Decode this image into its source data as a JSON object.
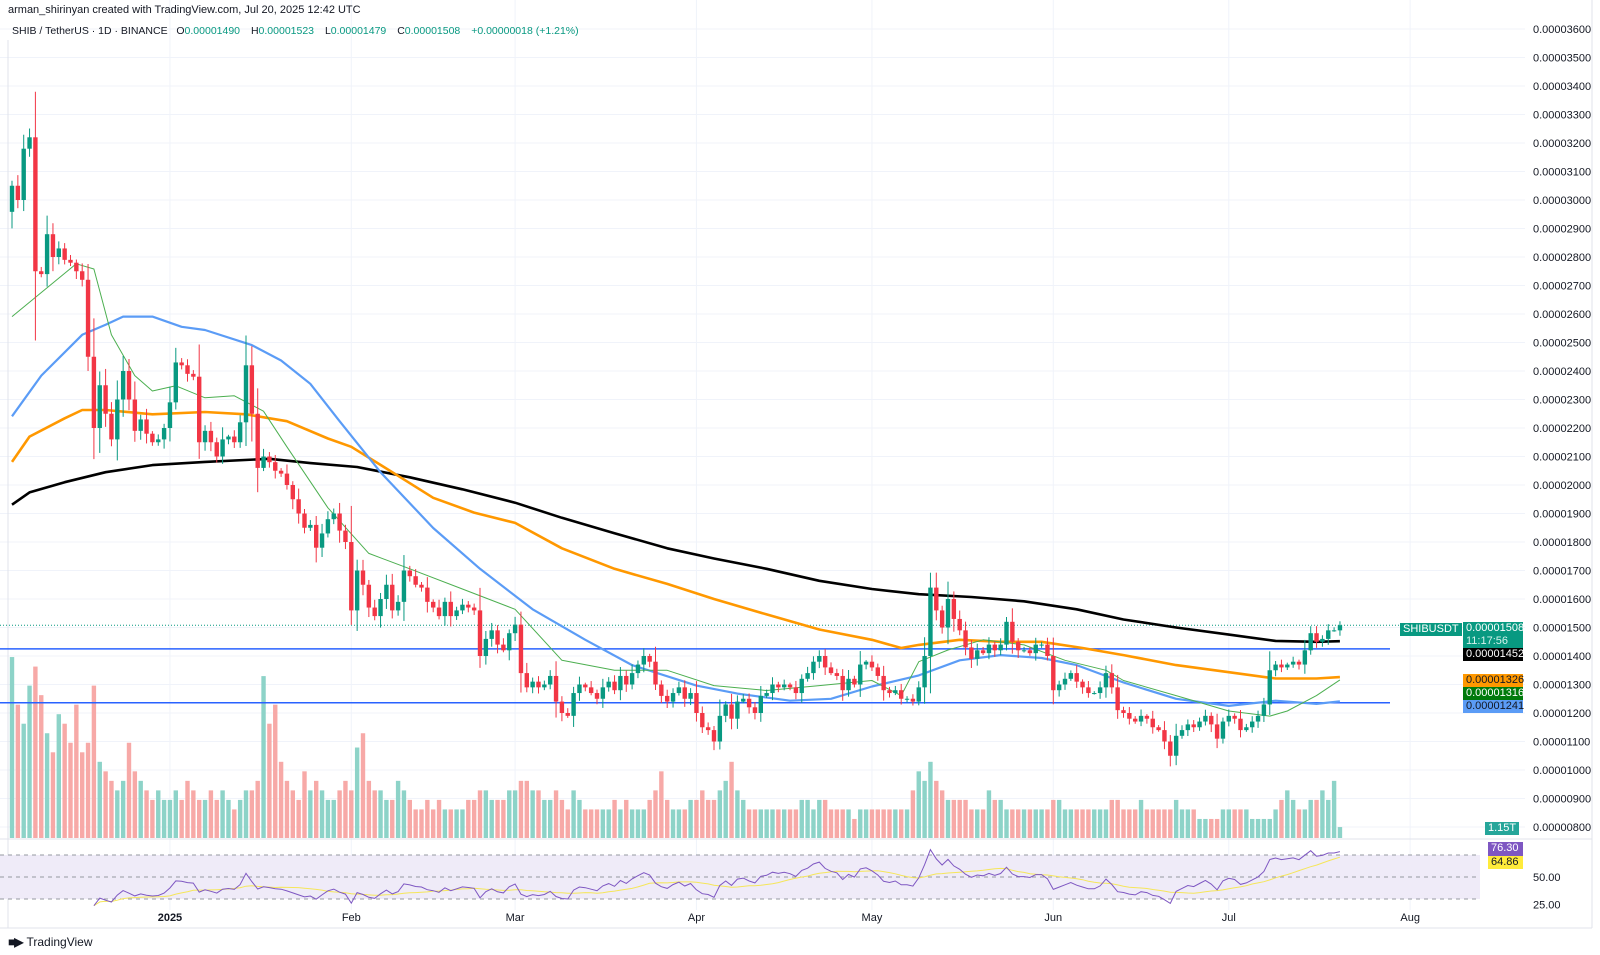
{
  "header": {
    "credit": "arman_shirinyan created with TradingView.com, Jul 20, 2025 12:42 UTC",
    "symbol": "SHIB / TetherUS · 1D · BINANCE",
    "open_label": "O",
    "open": "0.00001490",
    "high_label": "H",
    "high": "0.00001523",
    "low_label": "L",
    "low": "0.00001479",
    "close_label": "C",
    "close": "0.00001508",
    "change": "+0.00000018 (+1.21%)"
  },
  "price_scale": {
    "last_price_tag": "SHIBUSDT",
    "last_price": "0.00001508",
    "countdown": "11:17:56",
    "ma_labels": [
      {
        "value": "0.00001452",
        "color": "#000000"
      },
      {
        "value": "0.00001326",
        "color": "#FF9800"
      },
      {
        "value": "0.00001316",
        "color": "#007A0B"
      },
      {
        "value": "0.00001241",
        "color": "#5B9CF6"
      }
    ],
    "volume_label": "1.15T",
    "rsi_value": "76.30",
    "rsi_ma_value": "64.86"
  },
  "footer": {
    "logo_text": "TradingView"
  },
  "chart_data": {
    "type": "candlestick",
    "title": "",
    "colors": {
      "up": "#089981",
      "down": "#F23645",
      "up_volume": "#8DD3C8",
      "down_volume": "#F7A9A7",
      "rsi": "#7E57C2",
      "rsi_ma": "#F5E65A",
      "rsi_band": "#EFEBF8",
      "level_line": "#2962FF",
      "grid": "#F0F3FA"
    },
    "price_ticks": [
      "0.00003600",
      "0.00003500",
      "0.00003400",
      "0.00003300",
      "0.00003200",
      "0.00003100",
      "0.00003000",
      "0.00002900",
      "0.00002800",
      "0.00002700",
      "0.00002600",
      "0.00002500",
      "0.00002400",
      "0.00002300",
      "0.00002200",
      "0.00002100",
      "0.00002000",
      "0.00001900",
      "0.00001800",
      "0.00001700",
      "0.00001600",
      "0.00001500",
      "0.00001400",
      "0.00001300",
      "0.00001200",
      "0.00001100",
      "0.00001000",
      "0.00000900",
      "0.00000800"
    ],
    "rsi_ticks": [
      "50.00",
      "25.00"
    ],
    "rsi_levels": [
      70,
      50,
      30
    ],
    "time_ticks": [
      {
        "date": "2025-01-01",
        "label": "2025",
        "bold": true
      },
      {
        "date": "2025-02-01",
        "label": "Feb"
      },
      {
        "date": "2025-03-01",
        "label": "Mar"
      },
      {
        "date": "2025-04-01",
        "label": "Apr"
      },
      {
        "date": "2025-05-01",
        "label": "May"
      },
      {
        "date": "2025-06-01",
        "label": "Jun"
      },
      {
        "date": "2025-07-01",
        "label": "Jul"
      },
      {
        "date": "2025-08-01",
        "label": "Aug"
      }
    ],
    "horizontal_levels": [
      1.425e-05,
      1.236e-05
    ],
    "closes": {
      "2024-12": [
        3.05e-05,
        3e-05,
        3.18e-05,
        3.22e-05,
        2.75e-05,
        2.74e-05,
        2.88e-05,
        2.8e-05,
        2.83e-05,
        2.79e-05,
        2.78e-05,
        2.75e-05,
        2.72e-05,
        2.45e-05,
        2.2e-05,
        2.35e-05,
        2.25e-05,
        2.16e-05,
        2.3e-05,
        2.4e-05,
        2.3e-05,
        2.19e-05,
        2.23e-05,
        2.18e-05,
        2.15e-05,
        2.16e-05,
        2.2e-05
      ],
      "2025-01": [
        2.29e-05,
        2.43e-05,
        2.42e-05,
        2.39e-05,
        2.38e-05,
        2.15e-05,
        2.19e-05,
        2.15e-05,
        2.1e-05,
        2.16e-05,
        2.17e-05,
        2.15e-05,
        2.22e-05,
        2.42e-05,
        2.25e-05,
        2.06e-05,
        2.1e-05,
        2.08e-05,
        2.05e-05,
        2.04e-05,
        2e-05,
        1.95e-05,
        1.9e-05,
        1.85e-05,
        1.86e-05,
        1.78e-05,
        1.83e-05,
        1.88e-05,
        1.9e-05,
        1.84e-05,
        1.8e-05
      ],
      "2025-02": [
        1.56e-05,
        1.7e-05,
        1.65e-05,
        1.57e-05,
        1.54e-05,
        1.6e-05,
        1.65e-05,
        1.56e-05,
        1.59e-05,
        1.7e-05,
        1.68e-05,
        1.65e-05,
        1.64e-05,
        1.59e-05,
        1.57e-05,
        1.54e-05,
        1.59e-05,
        1.54e-05,
        1.56e-05,
        1.58e-05,
        1.57e-05,
        1.56e-05,
        1.4e-05,
        1.46e-05,
        1.49e-05,
        1.44e-05,
        1.42e-05,
        1.48e-05
      ],
      "2025-03": [
        1.51e-05,
        1.34e-05,
        1.29e-05,
        1.31e-05,
        1.29e-05,
        1.3e-05,
        1.33e-05,
        1.24e-05,
        1.2e-05,
        1.19e-05,
        1.27e-05,
        1.3e-05,
        1.29e-05,
        1.27e-05,
        1.25e-05,
        1.29e-05,
        1.31e-05,
        1.28e-05,
        1.33e-05,
        1.3e-05,
        1.34e-05,
        1.37e-05,
        1.4e-05,
        1.38e-05,
        1.3e-05,
        1.26e-05,
        1.24e-05,
        1.27e-05,
        1.29e-05,
        1.25e-05,
        1.27e-05
      ],
      "2025-04": [
        1.2e-05,
        1.15e-05,
        1.14e-05,
        1.1e-05,
        1.19e-05,
        1.23e-05,
        1.18e-05,
        1.24e-05,
        1.25e-05,
        1.22e-05,
        1.2e-05,
        1.26e-05,
        1.27e-05,
        1.3e-05,
        1.29e-05,
        1.3e-05,
        1.29e-05,
        1.27e-05,
        1.32e-05,
        1.34e-05,
        1.38e-05,
        1.4e-05,
        1.36e-05,
        1.34e-05,
        1.33e-05,
        1.28e-05,
        1.32e-05,
        1.3e-05,
        1.37e-05,
        1.38e-05
      ],
      "2025-05": [
        1.36e-05,
        1.33e-05,
        1.28e-05,
        1.27e-05,
        1.28e-05,
        1.25e-05,
        1.25e-05,
        1.24e-05,
        1.29e-05,
        1.4e-05,
        1.64e-05,
        1.56e-05,
        1.5e-05,
        1.6e-05,
        1.53e-05,
        1.49e-05,
        1.43e-05,
        1.39e-05,
        1.42e-05,
        1.41e-05,
        1.44e-05,
        1.42e-05,
        1.44e-05,
        1.52e-05,
        1.45e-05,
        1.42e-05,
        1.42e-05,
        1.41e-05,
        1.44e-05,
        1.44e-05,
        1.4e-05
      ],
      "2025-06": [
        1.28e-05,
        1.3e-05,
        1.32e-05,
        1.34e-05,
        1.31e-05,
        1.29e-05,
        1.27e-05,
        1.27e-05,
        1.29e-05,
        1.34e-05,
        1.29e-05,
        1.21e-05,
        1.2e-05,
        1.18e-05,
        1.17e-05,
        1.19e-05,
        1.18e-05,
        1.15e-05,
        1.14e-05,
        1.1e-05,
        1.05e-05,
        1.12e-05,
        1.14e-05,
        1.16e-05,
        1.15e-05,
        1.17e-05,
        1.19e-05,
        1.16e-05,
        1.11e-05,
        1.17e-05
      ],
      "2025-07": [
        1.19e-05,
        1.18e-05,
        1.14e-05,
        1.15e-05,
        1.17e-05,
        1.19e-05,
        1.23e-05,
        1.35e-05,
        1.37e-05,
        1.36e-05,
        1.37e-05,
        1.38e-05,
        1.37e-05,
        1.42e-05,
        1.48e-05,
        1.45e-05,
        1.46e-05,
        1.49e-05,
        1.49e-05,
        1.508e-05
      ]
    },
    "volume_T": {
      "2024-12": [
        19,
        14,
        12,
        16,
        18,
        15,
        11,
        9,
        13,
        12,
        10,
        14,
        9,
        10,
        16,
        8,
        7,
        6,
        5,
        6,
        10,
        7,
        6,
        5,
        4,
        5,
        4
      ],
      "2025-01": [
        4,
        5,
        4,
        6,
        5,
        4,
        4,
        5,
        4,
        5,
        4,
        3,
        4,
        5,
        5,
        6,
        17,
        12,
        14,
        8,
        6,
        5,
        4,
        7,
        5,
        6,
        5,
        4,
        4,
        5,
        6
      ],
      "2025-02": [
        5,
        9.5,
        11,
        6,
        5,
        5,
        4,
        4,
        6,
        5,
        4,
        3,
        3,
        4,
        3,
        4,
        3,
        3,
        3,
        3,
        4,
        4,
        5,
        5,
        4,
        4,
        4,
        5
      ],
      "2025-03": [
        5,
        6,
        6,
        5,
        5,
        4,
        4,
        5,
        4,
        3,
        5,
        4,
        3,
        3,
        3,
        3,
        3,
        4,
        3,
        4,
        3,
        3,
        3,
        4,
        5,
        7,
        4,
        3,
        3,
        3,
        4
      ],
      "2025-04": [
        4,
        5,
        4,
        4,
        5,
        6,
        8,
        5,
        4,
        3,
        3,
        3,
        3,
        3,
        3,
        3,
        3,
        3,
        4,
        4,
        3,
        4,
        4,
        3,
        3,
        3,
        3,
        2,
        3,
        3
      ],
      "2025-05": [
        3,
        3,
        3,
        3,
        3,
        3,
        3,
        5,
        7,
        6,
        8,
        6,
        5,
        4,
        4,
        4,
        4,
        3,
        3,
        3,
        5,
        4,
        4,
        3,
        3,
        3,
        3,
        3,
        3,
        3,
        3
      ],
      "2025-06": [
        4,
        4,
        3,
        3,
        3,
        3,
        3,
        3,
        3,
        3,
        4,
        4,
        3,
        3,
        3,
        4,
        3,
        3,
        3,
        3,
        3,
        4,
        3,
        3,
        3,
        2,
        2,
        2,
        2,
        3
      ],
      "2025-07": [
        3,
        3,
        3,
        3,
        2,
        2,
        2,
        2,
        3,
        4,
        5,
        4,
        3,
        3,
        4,
        4,
        5,
        4,
        6,
        1.15
      ]
    },
    "moving_averages": [
      {
        "color": "#000000",
        "thickness": "thick",
        "points": [
          [
            "2024-12-05",
            1.931e-05
          ],
          [
            "2024-12-08",
            1.974e-05
          ],
          [
            "2024-12-14",
            2.01e-05
          ],
          [
            "2024-12-21",
            2.045e-05
          ],
          [
            "2024-12-29",
            2.07e-05
          ],
          [
            "2025-01-07",
            2.081e-05
          ],
          [
            "2025-01-18",
            2.092e-05
          ],
          [
            "2025-01-25",
            2.077e-05
          ],
          [
            "2025-02-02",
            2.063e-05
          ],
          [
            "2025-02-11",
            2.027e-05
          ],
          [
            "2025-02-20",
            1.985e-05
          ],
          [
            "2025-03-01",
            1.938e-05
          ],
          [
            "2025-03-09",
            1.885e-05
          ],
          [
            "2025-03-18",
            1.831e-05
          ],
          [
            "2025-03-27",
            1.778e-05
          ],
          [
            "2025-04-04",
            1.742e-05
          ],
          [
            "2025-04-13",
            1.706e-05
          ],
          [
            "2025-04-22",
            1.664e-05
          ],
          [
            "2025-05-01",
            1.635e-05
          ],
          [
            "2025-05-09",
            1.617e-05
          ],
          [
            "2025-05-18",
            1.607e-05
          ],
          [
            "2025-05-27",
            1.592e-05
          ],
          [
            "2025-06-05",
            1.564e-05
          ],
          [
            "2025-06-13",
            1.528e-05
          ],
          [
            "2025-06-22",
            1.5e-05
          ],
          [
            "2025-07-01",
            1.475e-05
          ],
          [
            "2025-07-09",
            1.453e-05
          ],
          [
            "2025-07-16",
            1.45e-05
          ],
          [
            "2025-07-20",
            1.452e-05
          ]
        ]
      },
      {
        "color": "#FF9800",
        "thickness": "thick",
        "points": [
          [
            "2024-12-05",
            2.081e-05
          ],
          [
            "2024-12-08",
            2.17e-05
          ],
          [
            "2024-12-14",
            2.234e-05
          ],
          [
            "2024-12-17",
            2.263e-05
          ],
          [
            "2024-12-21",
            2.263e-05
          ],
          [
            "2024-12-29",
            2.248e-05
          ],
          [
            "2025-01-07",
            2.256e-05
          ],
          [
            "2025-01-14",
            2.248e-05
          ],
          [
            "2025-01-21",
            2.224e-05
          ],
          [
            "2025-01-28",
            2.163e-05
          ],
          [
            "2025-02-01",
            2.134e-05
          ],
          [
            "2025-02-08",
            2.045e-05
          ],
          [
            "2025-02-15",
            1.955e-05
          ],
          [
            "2025-02-22",
            1.903e-05
          ],
          [
            "2025-03-01",
            1.867e-05
          ],
          [
            "2025-03-09",
            1.778e-05
          ],
          [
            "2025-03-18",
            1.706e-05
          ],
          [
            "2025-03-27",
            1.653e-05
          ],
          [
            "2025-04-04",
            1.6e-05
          ],
          [
            "2025-04-13",
            1.546e-05
          ],
          [
            "2025-04-22",
            1.493e-05
          ],
          [
            "2025-05-01",
            1.457e-05
          ],
          [
            "2025-05-06",
            1.428e-05
          ],
          [
            "2025-05-09",
            1.439e-05
          ],
          [
            "2025-05-16",
            1.457e-05
          ],
          [
            "2025-05-23",
            1.45e-05
          ],
          [
            "2025-05-30",
            1.45e-05
          ],
          [
            "2025-06-06",
            1.428e-05
          ],
          [
            "2025-06-13",
            1.403e-05
          ],
          [
            "2025-06-22",
            1.368e-05
          ],
          [
            "2025-07-01",
            1.343e-05
          ],
          [
            "2025-07-09",
            1.321e-05
          ],
          [
            "2025-07-16",
            1.321e-05
          ],
          [
            "2025-07-20",
            1.326e-05
          ]
        ]
      },
      {
        "color": "#5B9CF6",
        "thickness": "medium",
        "points": [
          [
            "2024-12-05",
            2.241e-05
          ],
          [
            "2024-12-10",
            2.384e-05
          ],
          [
            "2024-12-17",
            2.527e-05
          ],
          [
            "2024-12-21",
            2.562e-05
          ],
          [
            "2024-12-24",
            2.591e-05
          ],
          [
            "2024-12-29",
            2.591e-05
          ],
          [
            "2025-01-03",
            2.555e-05
          ],
          [
            "2025-01-07",
            2.544e-05
          ],
          [
            "2025-01-15",
            2.491e-05
          ],
          [
            "2025-01-20",
            2.437e-05
          ],
          [
            "2025-01-25",
            2.355e-05
          ],
          [
            "2025-01-30",
            2.224e-05
          ],
          [
            "2025-02-06",
            2.045e-05
          ],
          [
            "2025-02-15",
            1.849e-05
          ],
          [
            "2025-02-23",
            1.706e-05
          ],
          [
            "2025-03-04",
            1.564e-05
          ],
          [
            "2025-03-13",
            1.457e-05
          ],
          [
            "2025-03-21",
            1.368e-05
          ],
          [
            "2025-04-01",
            1.296e-05
          ],
          [
            "2025-04-08",
            1.268e-05
          ],
          [
            "2025-04-17",
            1.243e-05
          ],
          [
            "2025-04-24",
            1.25e-05
          ],
          [
            "2025-05-01",
            1.293e-05
          ],
          [
            "2025-05-09",
            1.332e-05
          ],
          [
            "2025-05-16",
            1.385e-05
          ],
          [
            "2025-05-23",
            1.403e-05
          ],
          [
            "2025-05-30",
            1.393e-05
          ],
          [
            "2025-06-05",
            1.368e-05
          ],
          [
            "2025-06-13",
            1.307e-05
          ],
          [
            "2025-06-22",
            1.25e-05
          ],
          [
            "2025-07-01",
            1.225e-05
          ],
          [
            "2025-07-09",
            1.243e-05
          ],
          [
            "2025-07-16",
            1.232e-05
          ],
          [
            "2025-07-20",
            1.241e-05
          ]
        ]
      },
      {
        "color": "#4CAF50",
        "thickness": "thin",
        "points": [
          [
            "2024-12-05",
            2.591e-05
          ],
          [
            "2024-12-16",
            2.776e-05
          ],
          [
            "2024-12-19",
            2.758e-05
          ],
          [
            "2024-12-22",
            2.527e-05
          ],
          [
            "2024-12-26",
            2.384e-05
          ],
          [
            "2024-12-29",
            2.33e-05
          ],
          [
            "2025-01-02",
            2.348e-05
          ],
          [
            "2025-01-07",
            2.306e-05
          ],
          [
            "2025-01-12",
            2.313e-05
          ],
          [
            "2025-01-17",
            2.259e-05
          ],
          [
            "2025-01-21",
            2.134e-05
          ],
          [
            "2025-01-28",
            1.92e-05
          ],
          [
            "2025-02-04",
            1.76e-05
          ],
          [
            "2025-02-11",
            1.706e-05
          ],
          [
            "2025-02-20",
            1.635e-05
          ],
          [
            "2025-03-01",
            1.564e-05
          ],
          [
            "2025-03-09",
            1.385e-05
          ],
          [
            "2025-03-18",
            1.35e-05
          ],
          [
            "2025-03-27",
            1.35e-05
          ],
          [
            "2025-04-04",
            1.296e-05
          ],
          [
            "2025-04-13",
            1.279e-05
          ],
          [
            "2025-04-22",
            1.296e-05
          ],
          [
            "2025-05-01",
            1.314e-05
          ],
          [
            "2025-05-06",
            1.261e-05
          ],
          [
            "2025-05-09",
            1.38e-05
          ],
          [
            "2025-05-14",
            1.421e-05
          ],
          [
            "2025-05-20",
            1.457e-05
          ],
          [
            "2025-05-27",
            1.439e-05
          ],
          [
            "2025-06-03",
            1.385e-05
          ],
          [
            "2025-06-10",
            1.35e-05
          ],
          [
            "2025-06-13",
            1.314e-05
          ],
          [
            "2025-06-22",
            1.261e-05
          ],
          [
            "2025-07-01",
            1.207e-05
          ],
          [
            "2025-07-08",
            1.189e-05
          ],
          [
            "2025-07-11",
            1.207e-05
          ],
          [
            "2025-07-16",
            1.261e-05
          ],
          [
            "2025-07-20",
            1.316e-05
          ]
        ]
      }
    ]
  }
}
